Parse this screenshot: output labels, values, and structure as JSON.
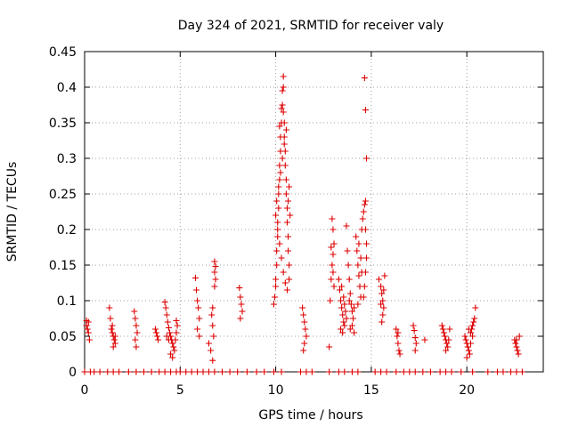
{
  "chart_data": {
    "type": "scatter",
    "title": "Day 324 of 2021, SRMTID for receiver valy",
    "xlabel": "GPS time / hours",
    "ylabel": "SRMTID / TECUs",
    "xlim": [
      0,
      24
    ],
    "ylim": [
      0,
      0.45
    ],
    "grid": true,
    "marker": "+",
    "color": "#dd0000",
    "x_ticks": [
      0,
      5,
      10,
      15,
      20
    ],
    "x_tick_labels": [
      "0",
      "5",
      "10",
      "15",
      "20"
    ],
    "y_ticks": [
      0,
      0.05,
      0.1,
      0.15,
      0.2,
      0.25,
      0.3,
      0.35,
      0.4,
      0.45
    ],
    "y_tick_labels": [
      "0",
      "0.05",
      "0.1",
      "0.15",
      "0.2",
      "0.25",
      "0.3",
      "0.35",
      "0.4",
      "0.45"
    ],
    "series": [
      {
        "name": "SRMTID",
        "points": [
          [
            0.1,
            0.072
          ],
          [
            0.15,
            0.06
          ],
          [
            0.2,
            0.055
          ],
          [
            0.25,
            0.045
          ],
          [
            0.1,
            0.065
          ],
          [
            0.2,
            0.07
          ],
          [
            1.3,
            0.09
          ],
          [
            1.35,
            0.075
          ],
          [
            1.4,
            0.06
          ],
          [
            1.45,
            0.055
          ],
          [
            1.5,
            0.05
          ],
          [
            1.55,
            0.045
          ],
          [
            1.6,
            0.04
          ],
          [
            1.5,
            0.035
          ],
          [
            1.45,
            0.065
          ],
          [
            1.6,
            0.05
          ],
          [
            2.6,
            0.085
          ],
          [
            2.65,
            0.075
          ],
          [
            2.7,
            0.065
          ],
          [
            2.75,
            0.055
          ],
          [
            2.65,
            0.045
          ],
          [
            2.7,
            0.035
          ],
          [
            3.7,
            0.06
          ],
          [
            3.75,
            0.055
          ],
          [
            3.8,
            0.05
          ],
          [
            3.85,
            0.045
          ],
          [
            4.2,
            0.098
          ],
          [
            4.25,
            0.09
          ],
          [
            4.3,
            0.08
          ],
          [
            4.35,
            0.07
          ],
          [
            4.4,
            0.062
          ],
          [
            4.45,
            0.055
          ],
          [
            4.5,
            0.05
          ],
          [
            4.55,
            0.045
          ],
          [
            4.6,
            0.04
          ],
          [
            4.65,
            0.035
          ],
          [
            4.7,
            0.03
          ],
          [
            4.5,
            0.025
          ],
          [
            4.6,
            0.02
          ],
          [
            4.4,
            0.045
          ],
          [
            4.3,
            0.05
          ],
          [
            4.8,
            0.055
          ],
          [
            4.8,
            0.072
          ],
          [
            4.85,
            0.065
          ],
          [
            4.75,
            0.045
          ],
          [
            5.8,
            0.132
          ],
          [
            5.85,
            0.115
          ],
          [
            5.9,
            0.1
          ],
          [
            5.95,
            0.09
          ],
          [
            6.0,
            0.075
          ],
          [
            5.9,
            0.06
          ],
          [
            6.0,
            0.05
          ],
          [
            6.5,
            0.04
          ],
          [
            6.6,
            0.03
          ],
          [
            6.7,
            0.016
          ],
          [
            6.75,
            0.05
          ],
          [
            6.7,
            0.065
          ],
          [
            6.65,
            0.08
          ],
          [
            6.7,
            0.09
          ],
          [
            6.8,
            0.155
          ],
          [
            6.85,
            0.148
          ],
          [
            6.8,
            0.14
          ],
          [
            6.85,
            0.13
          ],
          [
            6.8,
            0.12
          ],
          [
            8.1,
            0.118
          ],
          [
            8.15,
            0.105
          ],
          [
            8.2,
            0.095
          ],
          [
            8.25,
            0.085
          ],
          [
            8.15,
            0.075
          ],
          [
            9.9,
            0.095
          ],
          [
            9.95,
            0.105
          ],
          [
            10.0,
            0.12
          ],
          [
            10.0,
            0.13
          ],
          [
            10.05,
            0.15
          ],
          [
            10.05,
            0.17
          ],
          [
            10.1,
            0.19
          ],
          [
            10.1,
            0.21
          ],
          [
            10.15,
            0.23
          ],
          [
            10.15,
            0.25
          ],
          [
            10.2,
            0.27
          ],
          [
            10.2,
            0.29
          ],
          [
            10.25,
            0.31
          ],
          [
            10.25,
            0.33
          ],
          [
            10.3,
            0.35
          ],
          [
            10.3,
            0.37
          ],
          [
            10.35,
            0.395
          ],
          [
            10.4,
            0.415
          ],
          [
            10.4,
            0.4
          ],
          [
            10.35,
            0.375
          ],
          [
            10.45,
            0.35
          ],
          [
            10.45,
            0.33
          ],
          [
            10.5,
            0.31
          ],
          [
            10.5,
            0.29
          ],
          [
            10.55,
            0.27
          ],
          [
            10.55,
            0.25
          ],
          [
            10.6,
            0.23
          ],
          [
            10.6,
            0.21
          ],
          [
            10.65,
            0.19
          ],
          [
            10.65,
            0.17
          ],
          [
            10.7,
            0.15
          ],
          [
            10.7,
            0.13
          ],
          [
            10.6,
            0.115
          ],
          [
            10.5,
            0.125
          ],
          [
            10.4,
            0.14
          ],
          [
            10.3,
            0.16
          ],
          [
            10.2,
            0.18
          ],
          [
            10.1,
            0.2
          ],
          [
            10.0,
            0.22
          ],
          [
            10.05,
            0.24
          ],
          [
            10.15,
            0.26
          ],
          [
            10.25,
            0.28
          ],
          [
            10.35,
            0.3
          ],
          [
            10.45,
            0.32
          ],
          [
            10.55,
            0.34
          ],
          [
            10.65,
            0.24
          ],
          [
            10.7,
            0.26
          ],
          [
            10.75,
            0.22
          ],
          [
            10.2,
            0.345
          ],
          [
            10.4,
            0.365
          ],
          [
            11.4,
            0.09
          ],
          [
            11.45,
            0.08
          ],
          [
            11.5,
            0.07
          ],
          [
            11.55,
            0.06
          ],
          [
            11.6,
            0.05
          ],
          [
            11.5,
            0.04
          ],
          [
            11.45,
            0.03
          ],
          [
            12.8,
            0.035
          ],
          [
            12.85,
            0.1
          ],
          [
            12.9,
            0.13
          ],
          [
            12.95,
            0.15
          ],
          [
            13.0,
            0.165
          ],
          [
            12.9,
            0.175
          ],
          [
            13.0,
            0.2
          ],
          [
            12.95,
            0.215
          ],
          [
            13.05,
            0.18
          ],
          [
            13.0,
            0.14
          ],
          [
            13.05,
            0.12
          ],
          [
            13.3,
            0.13
          ],
          [
            13.35,
            0.115
          ],
          [
            13.4,
            0.1
          ],
          [
            13.45,
            0.09
          ],
          [
            13.5,
            0.08
          ],
          [
            13.55,
            0.07
          ],
          [
            13.6,
            0.065
          ],
          [
            13.4,
            0.06
          ],
          [
            13.5,
            0.055
          ],
          [
            13.45,
            0.12
          ],
          [
            13.55,
            0.105
          ],
          [
            13.6,
            0.095
          ],
          [
            13.65,
            0.085
          ],
          [
            13.7,
            0.075
          ],
          [
            13.7,
            0.205
          ],
          [
            13.75,
            0.17
          ],
          [
            13.8,
            0.15
          ],
          [
            13.85,
            0.13
          ],
          [
            13.9,
            0.11
          ],
          [
            13.95,
            0.095
          ],
          [
            14.0,
            0.085
          ],
          [
            14.05,
            0.075
          ],
          [
            14.0,
            0.065
          ],
          [
            13.9,
            0.06
          ],
          [
            14.1,
            0.055
          ],
          [
            14.1,
            0.09
          ],
          [
            13.85,
            0.1
          ],
          [
            14.2,
            0.19
          ],
          [
            14.25,
            0.17
          ],
          [
            14.3,
            0.15
          ],
          [
            14.35,
            0.135
          ],
          [
            14.4,
            0.12
          ],
          [
            14.45,
            0.105
          ],
          [
            14.3,
            0.095
          ],
          [
            14.35,
            0.18
          ],
          [
            14.45,
            0.16
          ],
          [
            14.5,
            0.14
          ],
          [
            14.5,
            0.2
          ],
          [
            14.55,
            0.215
          ],
          [
            14.6,
            0.225
          ],
          [
            14.65,
            0.235
          ],
          [
            14.7,
            0.24
          ],
          [
            14.7,
            0.2
          ],
          [
            14.75,
            0.18
          ],
          [
            14.75,
            0.16
          ],
          [
            14.7,
            0.14
          ],
          [
            14.65,
            0.12
          ],
          [
            14.6,
            0.105
          ],
          [
            14.65,
            0.413
          ],
          [
            14.7,
            0.368
          ],
          [
            14.75,
            0.3
          ],
          [
            15.4,
            0.13
          ],
          [
            15.5,
            0.12
          ],
          [
            15.55,
            0.11
          ],
          [
            15.6,
            0.1
          ],
          [
            15.65,
            0.09
          ],
          [
            15.6,
            0.08
          ],
          [
            15.55,
            0.07
          ],
          [
            15.7,
            0.135
          ],
          [
            15.65,
            0.115
          ],
          [
            15.5,
            0.095
          ],
          [
            16.3,
            0.06
          ],
          [
            16.35,
            0.05
          ],
          [
            16.4,
            0.04
          ],
          [
            16.45,
            0.03
          ],
          [
            16.5,
            0.025
          ],
          [
            16.4,
            0.055
          ],
          [
            17.2,
            0.065
          ],
          [
            17.25,
            0.058
          ],
          [
            17.3,
            0.048
          ],
          [
            17.35,
            0.04
          ],
          [
            17.3,
            0.03
          ],
          [
            17.8,
            0.045
          ],
          [
            18.7,
            0.065
          ],
          [
            18.75,
            0.06
          ],
          [
            18.8,
            0.055
          ],
          [
            18.85,
            0.05
          ],
          [
            18.9,
            0.045
          ],
          [
            18.95,
            0.04
          ],
          [
            19.0,
            0.035
          ],
          [
            18.9,
            0.03
          ],
          [
            19.05,
            0.045
          ],
          [
            19.1,
            0.06
          ],
          [
            19.9,
            0.05
          ],
          [
            19.95,
            0.045
          ],
          [
            20.0,
            0.04
          ],
          [
            20.05,
            0.035
          ],
          [
            20.1,
            0.03
          ],
          [
            20.15,
            0.025
          ],
          [
            20.0,
            0.02
          ],
          [
            20.2,
            0.055
          ],
          [
            20.25,
            0.06
          ],
          [
            20.3,
            0.065
          ],
          [
            20.35,
            0.07
          ],
          [
            20.4,
            0.075
          ],
          [
            20.3,
            0.05
          ],
          [
            20.2,
            0.04
          ],
          [
            20.45,
            0.09
          ],
          [
            20.1,
            0.06
          ],
          [
            22.5,
            0.045
          ],
          [
            22.55,
            0.04
          ],
          [
            22.6,
            0.035
          ],
          [
            22.65,
            0.03
          ],
          [
            22.7,
            0.025
          ],
          [
            22.75,
            0.05
          ],
          [
            22.6,
            0.045
          ]
        ]
      },
      {
        "name": "baseline",
        "points": [
          [
            0.0,
            0
          ],
          [
            0.3,
            0
          ],
          [
            0.5,
            0
          ],
          [
            0.8,
            0
          ],
          [
            1.2,
            0
          ],
          [
            1.5,
            0
          ],
          [
            1.8,
            0
          ],
          [
            2.3,
            0
          ],
          [
            2.7,
            0
          ],
          [
            3.1,
            0
          ],
          [
            3.5,
            0
          ],
          [
            3.9,
            0
          ],
          [
            4.2,
            0
          ],
          [
            4.5,
            0
          ],
          [
            4.8,
            0
          ],
          [
            5.0,
            0
          ],
          [
            5.3,
            0
          ],
          [
            5.6,
            0
          ],
          [
            5.9,
            0
          ],
          [
            6.2,
            0
          ],
          [
            6.5,
            0
          ],
          [
            6.8,
            0
          ],
          [
            7.2,
            0
          ],
          [
            7.6,
            0
          ],
          [
            8.0,
            0
          ],
          [
            8.5,
            0
          ],
          [
            9.0,
            0
          ],
          [
            9.4,
            0
          ],
          [
            9.9,
            0
          ],
          [
            10.3,
            0
          ],
          [
            11.3,
            0
          ],
          [
            11.6,
            0
          ],
          [
            11.9,
            0
          ],
          [
            12.8,
            0
          ],
          [
            13.3,
            0
          ],
          [
            13.6,
            0
          ],
          [
            14.0,
            0
          ],
          [
            14.3,
            0
          ],
          [
            15.2,
            0
          ],
          [
            15.5,
            0
          ],
          [
            15.8,
            0
          ],
          [
            16.3,
            0
          ],
          [
            16.7,
            0
          ],
          [
            17.0,
            0
          ],
          [
            17.3,
            0
          ],
          [
            17.7,
            0
          ],
          [
            18.1,
            0
          ],
          [
            18.6,
            0
          ],
          [
            18.9,
            0
          ],
          [
            19.2,
            0
          ],
          [
            19.7,
            0
          ],
          [
            20.3,
            0
          ],
          [
            21.1,
            0
          ],
          [
            21.6,
            0
          ],
          [
            21.9,
            0
          ],
          [
            22.3,
            0
          ],
          [
            22.6,
            0
          ],
          [
            22.9,
            0
          ]
        ]
      }
    ]
  }
}
